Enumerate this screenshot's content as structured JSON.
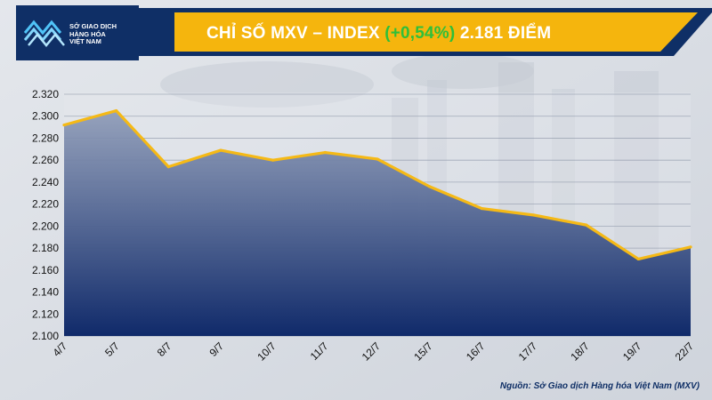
{
  "header": {
    "logo_lines": [
      "SỞ GIAO DỊCH",
      "HÀNG HÓA",
      "VIỆT NAM"
    ],
    "title_prefix": "CHỈ SỐ MXV – INDEX ",
    "title_change": "(+0,54%)",
    "title_suffix": " 2.181 ĐIỂM"
  },
  "source": "Nguồn: Sở Giao dịch Hàng hóa Việt Nam (MXV)",
  "colors": {
    "navy": "#0f2f66",
    "gold": "#f5b50d",
    "green": "#2fbf3a",
    "line": "#f5b916",
    "area_top": "#8f9cb8",
    "area_bottom": "#102a6a"
  },
  "chart_data": {
    "type": "area",
    "categories": [
      "4/7",
      "5/7",
      "8/7",
      "9/7",
      "10/7",
      "11/7",
      "12/7",
      "15/7",
      "16/7",
      "17/7",
      "18/7",
      "19/7",
      "22/7"
    ],
    "values": [
      2292,
      2305,
      2254,
      2269,
      2260,
      2267,
      2261,
      2236,
      2216,
      2210,
      2201,
      2170,
      2181
    ],
    "y_ticks": [
      "2.100",
      "2.120",
      "2.140",
      "2.160",
      "2.180",
      "2.200",
      "2.220",
      "2.240",
      "2.260",
      "2.280",
      "2.300",
      "2.320"
    ],
    "ylim": [
      2100,
      2320
    ],
    "grid": true,
    "title": "",
    "xlabel": "",
    "ylabel": ""
  }
}
